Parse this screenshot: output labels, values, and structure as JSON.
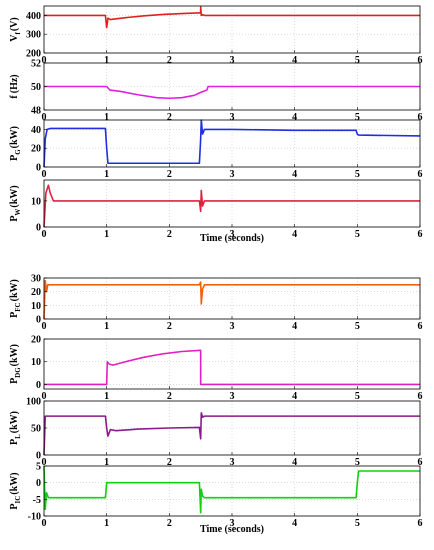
{
  "chart_data": [
    {
      "type": "line",
      "ylabel": "V_f (V)",
      "ylabel_main": "V",
      "ylabel_sub": "f",
      "ylabel_unit": "(V)",
      "xlim": [
        0,
        6
      ],
      "ylim": [
        200,
        450
      ],
      "x_ticks": [
        "0",
        "1",
        "2",
        "3",
        "4",
        "5",
        "6"
      ],
      "y_ticks": [
        200,
        300,
        400
      ],
      "xlabel": "",
      "series": [
        {
          "color": "#e02020",
          "x": [
            0,
            0.98,
            1.0,
            1.02,
            1.06,
            1.15,
            1.3,
            1.6,
            1.9,
            2.2,
            2.45,
            2.5,
            2.5,
            2.51,
            2.53,
            2.56,
            3.0,
            4.0,
            5.0,
            6.0
          ],
          "y": [
            400,
            400,
            335,
            385,
            378,
            382,
            388,
            398,
            405,
            410,
            413,
            413,
            445,
            400,
            404,
            400,
            400,
            400,
            400,
            400
          ]
        }
      ]
    },
    {
      "type": "line",
      "ylabel": "f (Hz)",
      "ylabel_main": "f",
      "ylabel_sub": "",
      "ylabel_unit": "(Hz)",
      "xlim": [
        0,
        6
      ],
      "ylim": [
        48,
        52
      ],
      "x_ticks": [
        "0",
        "1",
        "2",
        "3",
        "4",
        "5",
        "6"
      ],
      "y_ticks": [
        48,
        50,
        52
      ],
      "xlabel": "",
      "series": [
        {
          "color": "#e020e0",
          "x": [
            0,
            1.0,
            1.05,
            1.2,
            1.5,
            1.8,
            2.0,
            2.2,
            2.4,
            2.5,
            2.6,
            2.62,
            3.0,
            4.0,
            5.0,
            6.0
          ],
          "y": [
            50,
            50,
            49.7,
            49.6,
            49.3,
            49.05,
            49.0,
            49.05,
            49.25,
            49.5,
            49.7,
            50,
            50,
            50,
            50,
            50
          ]
        }
      ]
    },
    {
      "type": "line",
      "ylabel": "P_G (kW)",
      "ylabel_main": "P",
      "ylabel_sub": "G",
      "ylabel_unit": "(kW)",
      "xlim": [
        0,
        6
      ],
      "ylim": [
        0,
        50
      ],
      "x_ticks": [
        "0",
        "1",
        "2",
        "3",
        "4",
        "5",
        "6"
      ],
      "y_ticks": [
        0,
        20,
        40
      ],
      "xlabel": "",
      "series": [
        {
          "color": "#1e2ee0",
          "x": [
            0,
            0.02,
            0.05,
            0.1,
            0.98,
            1.0,
            1.02,
            2.48,
            2.5,
            2.51,
            2.53,
            2.56,
            3.0,
            4.0,
            4.98,
            5.0,
            5.02,
            6.0
          ],
          "y": [
            0,
            30,
            40,
            41,
            41,
            20,
            4,
            4,
            30,
            50,
            35,
            40,
            40,
            39,
            39,
            35,
            34,
            33
          ]
        }
      ]
    },
    {
      "type": "line",
      "ylabel": "P_W (kW)",
      "ylabel_main": "P",
      "ylabel_sub": "W",
      "ylabel_unit": "(kW)",
      "xlim": [
        0,
        6
      ],
      "ylim": [
        0,
        18
      ],
      "x_ticks": [
        "0",
        "1",
        "2",
        "3",
        "4",
        "5",
        "6"
      ],
      "y_ticks": [
        0,
        10
      ],
      "xlabel": "Time (seconds)",
      "series": [
        {
          "color": "#e02040",
          "x": [
            0,
            0.03,
            0.07,
            0.1,
            0.15,
            0.3,
            1.0,
            2.0,
            2.48,
            2.5,
            2.51,
            2.53,
            2.56,
            3.0,
            4.0,
            5.0,
            6.0
          ],
          "y": [
            0,
            13,
            16,
            13,
            10,
            10,
            10,
            10,
            10,
            6,
            14,
            8,
            10,
            10,
            10,
            10,
            10
          ]
        }
      ]
    },
    {
      "type": "line",
      "ylabel": "P_FC (kW)",
      "ylabel_main": "P",
      "ylabel_sub": "FC",
      "ylabel_unit": "(kW)",
      "xlim": [
        0,
        6
      ],
      "ylim": [
        0,
        30
      ],
      "x_ticks": [
        "0",
        "1",
        "2",
        "3",
        "4",
        "5",
        "6"
      ],
      "y_ticks": [
        0,
        10,
        20,
        30
      ],
      "xlabel": "",
      "series": [
        {
          "color": "#f06010",
          "x": [
            0,
            0.02,
            0.04,
            0.06,
            0.1,
            2.48,
            2.5,
            2.51,
            2.53,
            2.56,
            3.0,
            6.0
          ],
          "y": [
            0,
            28,
            20,
            25,
            25,
            25,
            27,
            11,
            22,
            25,
            25,
            25
          ]
        }
      ]
    },
    {
      "type": "line",
      "ylabel": "P_DG (kW)",
      "ylabel_main": "P",
      "ylabel_sub": "DG",
      "ylabel_unit": "(kW)",
      "xlim": [
        0,
        6
      ],
      "ylim": [
        -2,
        20
      ],
      "x_ticks": [
        "0",
        "1",
        "2",
        "3",
        "4",
        "5",
        "6"
      ],
      "y_ticks": [
        0,
        10,
        20
      ],
      "xlabel": "",
      "series": [
        {
          "color": "#e020c0",
          "x": [
            0,
            1.0,
            1.01,
            1.04,
            1.1,
            1.3,
            1.6,
            1.9,
            2.2,
            2.5,
            2.5,
            3.0,
            6.0
          ],
          "y": [
            0,
            0,
            10,
            9,
            8.5,
            10,
            12,
            13.5,
            14.5,
            15,
            0,
            0,
            0
          ]
        }
      ]
    },
    {
      "type": "line",
      "ylabel": "P_L (kW)",
      "ylabel_main": "P",
      "ylabel_sub": "L",
      "ylabel_unit": "(kW)",
      "xlim": [
        0,
        6
      ],
      "ylim": [
        0,
        100
      ],
      "x_ticks": [
        "0",
        "1",
        "2",
        "3",
        "4",
        "5",
        "6"
      ],
      "y_ticks": [
        0,
        50,
        100
      ],
      "xlabel": "",
      "series": [
        {
          "color": "#8a1a8a",
          "x": [
            0,
            0.02,
            0.05,
            0.98,
            1.0,
            1.02,
            1.06,
            1.15,
            1.5,
            2.0,
            2.48,
            2.5,
            2.51,
            2.53,
            2.56,
            3.0,
            6.0
          ],
          "y": [
            0,
            72,
            72,
            72,
            50,
            35,
            47,
            45,
            48,
            50,
            51,
            30,
            78,
            70,
            72,
            72,
            72
          ]
        }
      ]
    },
    {
      "type": "line",
      "ylabel": "P_IC (kW)",
      "ylabel_main": "P",
      "ylabel_sub": "IC",
      "ylabel_unit": "(kW)",
      "xlim": [
        0,
        6
      ],
      "ylim": [
        -10,
        5
      ],
      "x_ticks": [
        "0",
        "1",
        "2",
        "3",
        "4",
        "5",
        "6"
      ],
      "y_ticks": [
        -10,
        -5,
        0,
        5
      ],
      "xlabel": "Time (seconds)",
      "series": [
        {
          "color": "#10d010",
          "x": [
            0,
            0.02,
            0.04,
            0.07,
            0.1,
            0.98,
            1.0,
            1.02,
            2.48,
            2.5,
            2.51,
            2.53,
            2.56,
            3.0,
            4.0,
            4.98,
            5.0,
            5.02,
            6.0
          ],
          "y": [
            5,
            -8,
            -3,
            -4.5,
            -4.5,
            -4.5,
            0,
            0,
            0,
            -9,
            -2,
            -4,
            -4.5,
            -4.5,
            -4.5,
            -4.5,
            0,
            3.5,
            3.5
          ]
        }
      ]
    }
  ]
}
